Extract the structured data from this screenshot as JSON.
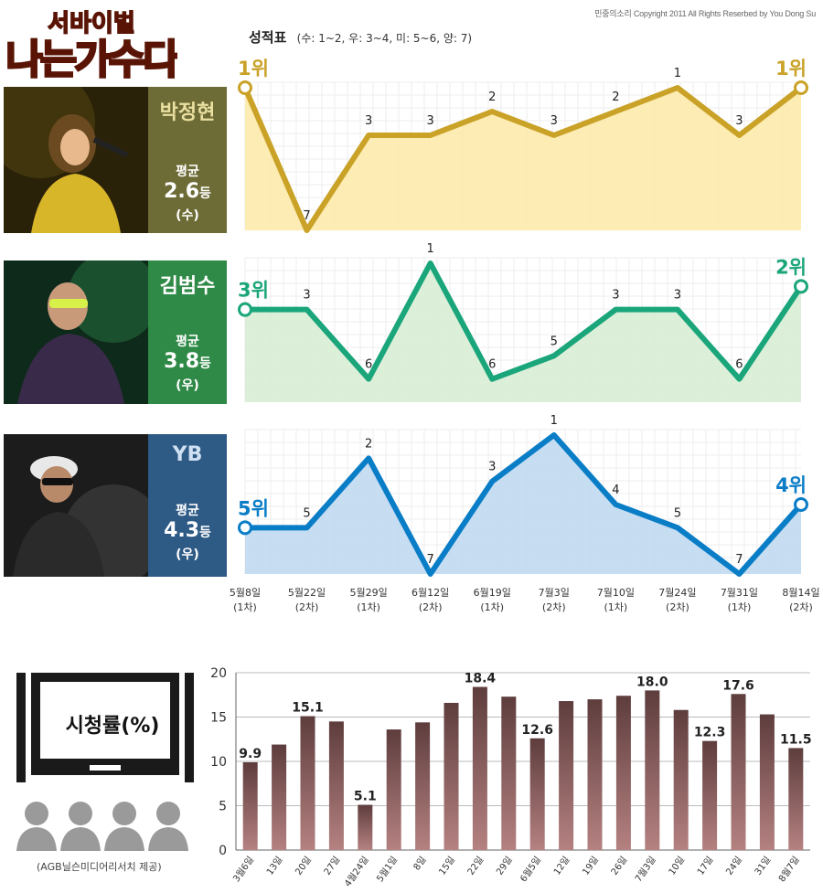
{
  "header": {
    "logo_text": "서바이벌 나는가수다",
    "copyright": "민중의소리 Copyright 2011 All Rights Reserbed by You Dong Su",
    "title": "성적표",
    "legend": "(수: 1~2, 우: 3~4, 미: 5~6, 양: 7)"
  },
  "colors": {
    "gold": "#c9a227",
    "gold_fill": "#fde9a6",
    "green": "#1aa67a",
    "green_fill": "#d6ecd2",
    "blue": "#0a7dc7",
    "blue_fill": "#bcd7f0",
    "bar_top": "#5e3d3d",
    "bar_bottom": "#b58181"
  },
  "singers": [
    {
      "name": "박정현",
      "avg_label": "평균",
      "avg_value": "2.6",
      "avg_unit": "등",
      "grade": "(수)",
      "start_label": "1위",
      "end_label": "1위",
      "side_color": "#6e6c36"
    },
    {
      "name": "김범수",
      "avg_label": "평균",
      "avg_value": "3.8",
      "avg_unit": "등",
      "grade": "(우)",
      "start_label": "3위",
      "end_label": "2위",
      "side_color": "#2f8a47"
    },
    {
      "name": "YB",
      "avg_label": "평균",
      "avg_value": "4.3",
      "avg_unit": "등",
      "grade": "(우)",
      "start_label": "5위",
      "end_label": "4위",
      "side_color": "#2e5a86"
    }
  ],
  "tv_panel": {
    "label": "시청률(%)",
    "source": "(AGB닐슨미디어리서치 제공)"
  },
  "chart_data": [
    {
      "type": "line",
      "y_direction": "rank (1 at top)",
      "x": [
        "5월8일 (1차)",
        "5월22일 (2차)",
        "5월29일 (1차)",
        "6월12일 (2차)",
        "6월19일 (1차)",
        "7월3일 (2차)",
        "7월10일 (1차)",
        "7월24일 (2차)",
        "7월31일 (1차)",
        "8월14일 (2차)"
      ],
      "x_dates": [
        "5월8일",
        "5월22일",
        "5월29일",
        "6월12일",
        "6월19일",
        "7월3일",
        "7월10일",
        "7월24일",
        "7월31일",
        "8월14일"
      ],
      "x_rounds": [
        "(1차)",
        "(2차)",
        "(1차)",
        "(2차)",
        "(1차)",
        "(2차)",
        "(1차)",
        "(2차)",
        "(1차)",
        "(2차)"
      ],
      "series": [
        {
          "name": "박정현",
          "values": [
            1,
            7,
            3,
            3,
            2,
            3,
            2,
            1,
            3,
            1
          ]
        },
        {
          "name": "김범수",
          "values": [
            3,
            3,
            6,
            1,
            6,
            5,
            3,
            3,
            6,
            2
          ]
        },
        {
          "name": "YB",
          "values": [
            5,
            5,
            2,
            7,
            3,
            1,
            4,
            5,
            7,
            4
          ]
        }
      ]
    },
    {
      "type": "bar",
      "title": "시청률(%)",
      "categories": [
        "3월6일",
        "13일",
        "20일",
        "27일",
        "4월24일",
        "5월1일",
        "8일",
        "15일",
        "22일",
        "29일",
        "6월5일",
        "12일",
        "19일",
        "26일",
        "7월3일",
        "10일",
        "17일",
        "24일",
        "31일",
        "8월7일"
      ],
      "values": [
        9.9,
        11.9,
        15.1,
        14.5,
        5.1,
        13.6,
        14.4,
        16.6,
        18.4,
        17.3,
        12.6,
        16.8,
        17.0,
        17.4,
        18.0,
        15.8,
        12.3,
        17.6,
        15.3,
        11.5
      ],
      "labeled_values": [
        "9.9",
        "",
        "15.1",
        "",
        "5.1",
        "",
        "",
        "",
        "18.4",
        "",
        "12.6",
        "",
        "",
        "",
        "18.0",
        "",
        "12.3",
        "17.6",
        "",
        "11.5"
      ],
      "yticks": [
        "0",
        "5",
        "10",
        "15",
        "20"
      ],
      "ylim": [
        0,
        20
      ]
    }
  ]
}
